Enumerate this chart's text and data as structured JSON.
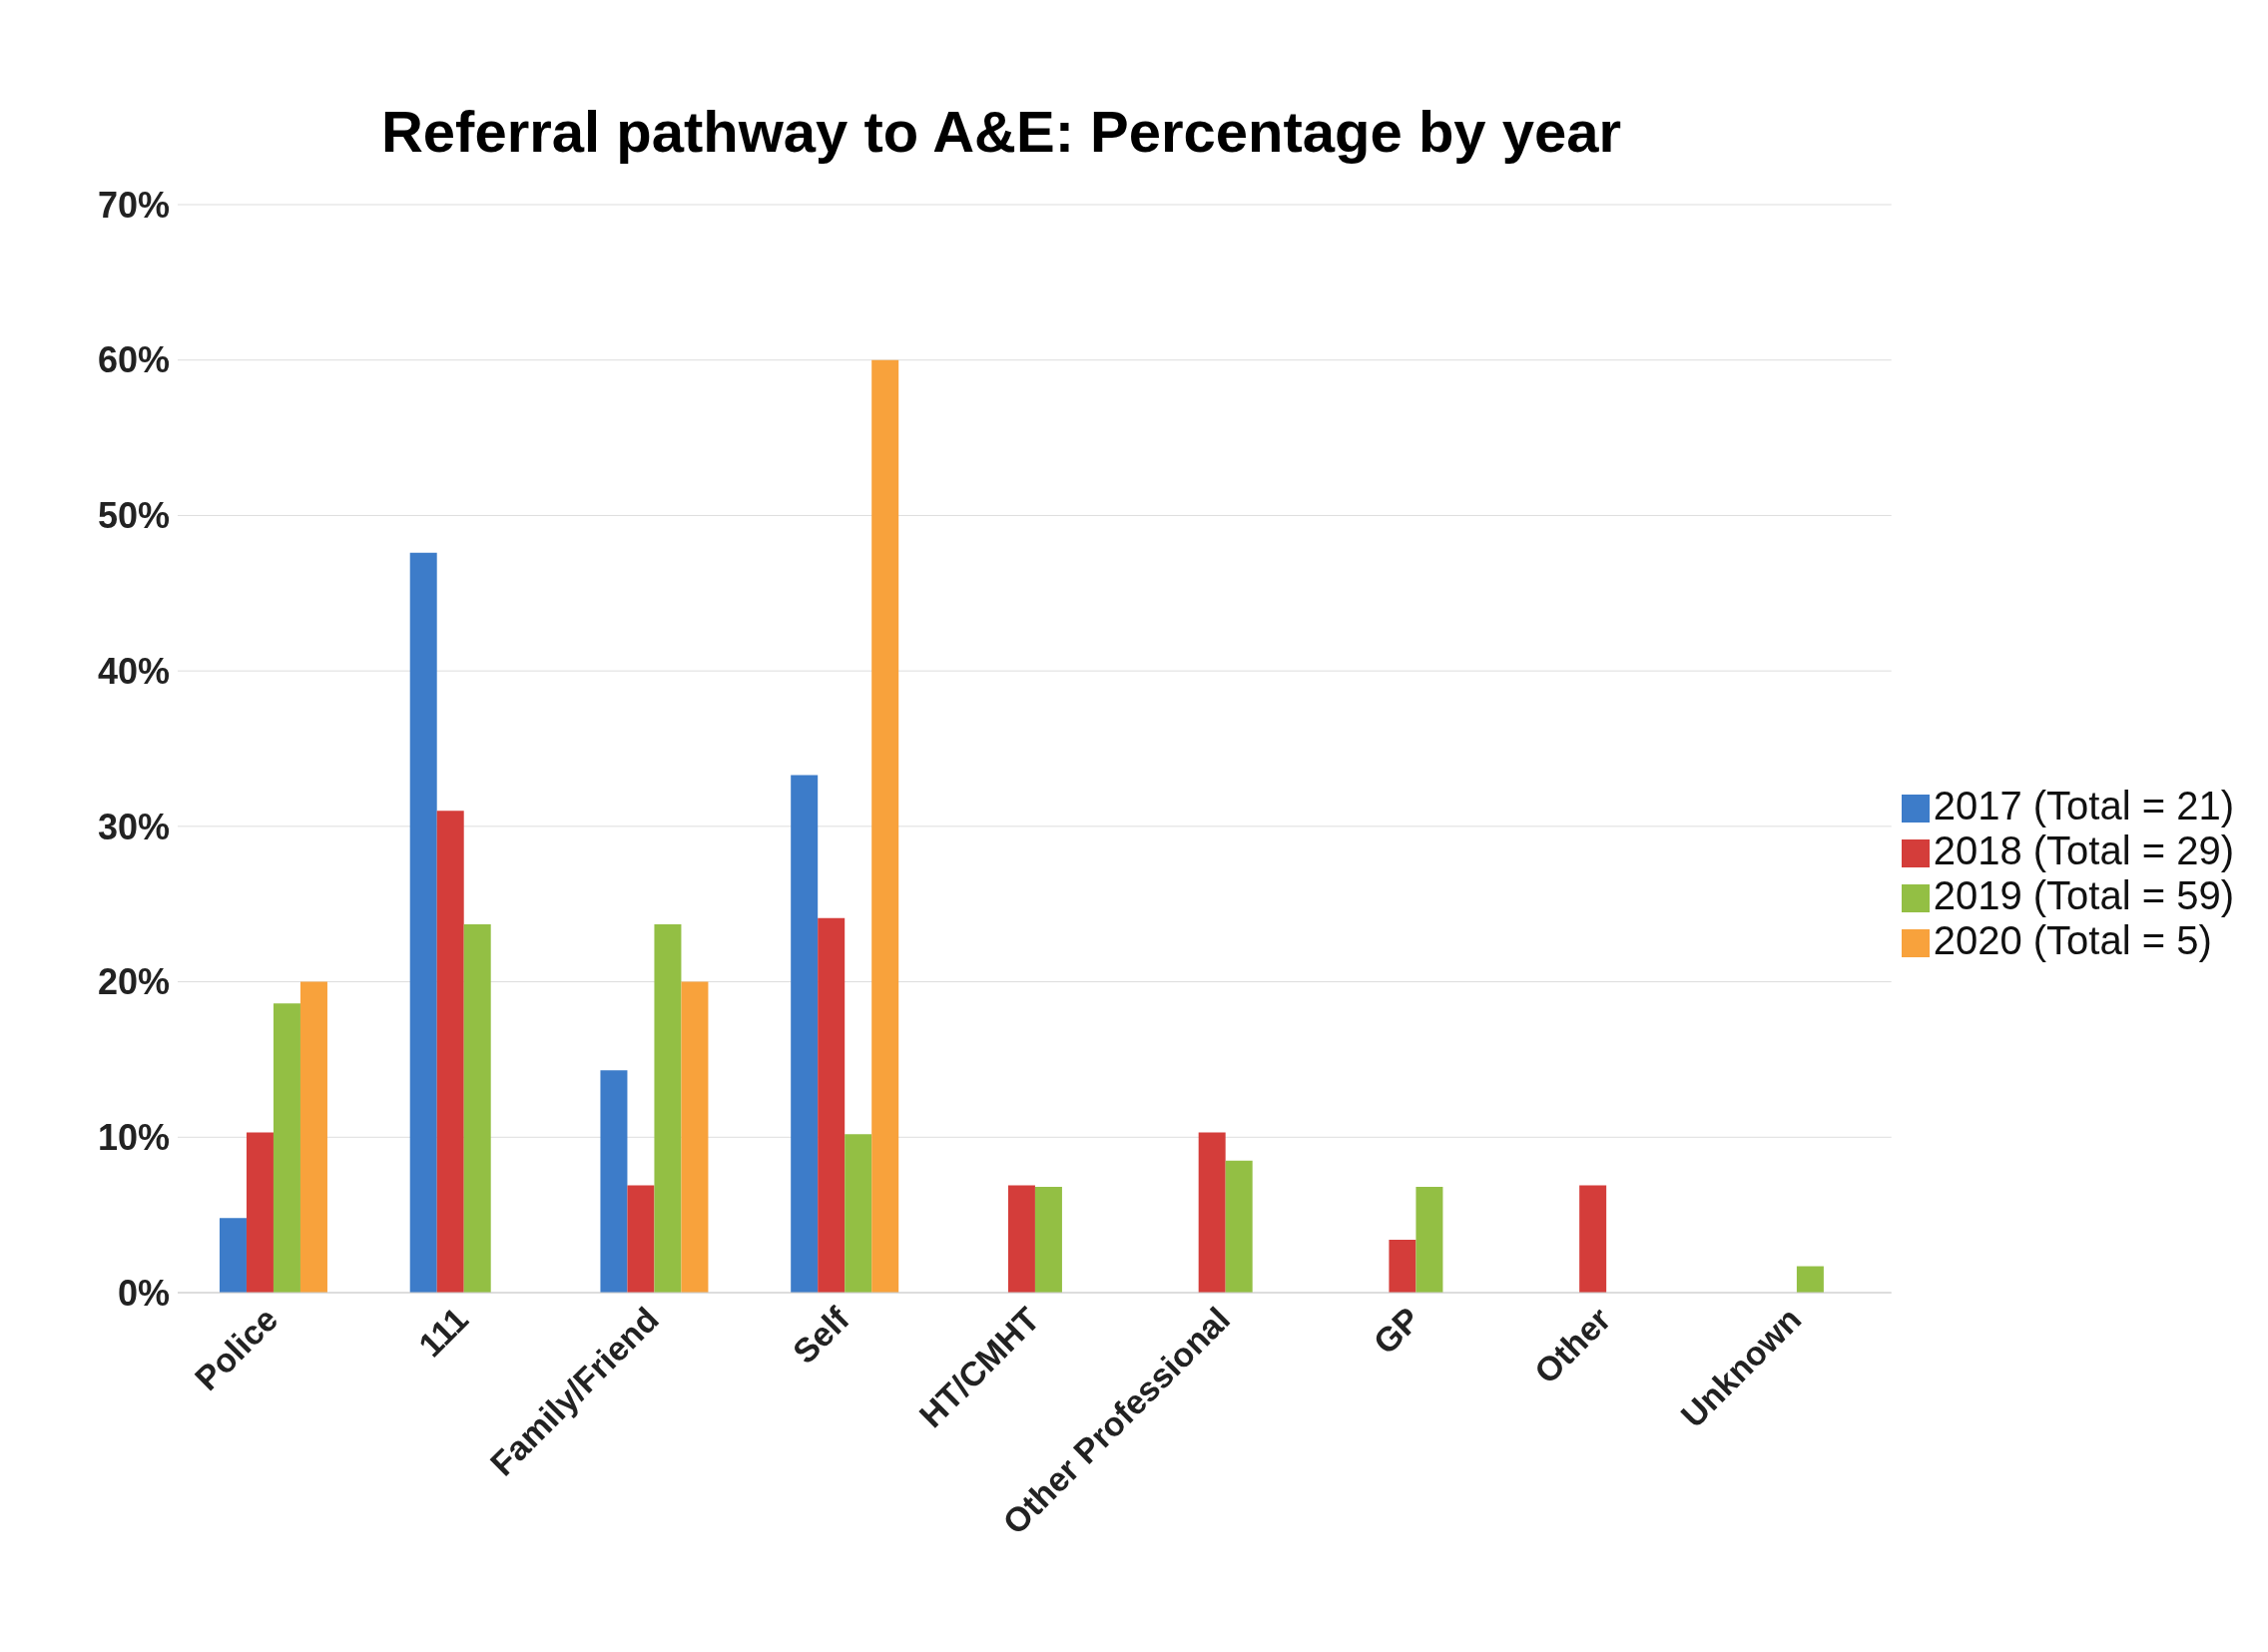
{
  "chart_data": {
    "type": "bar",
    "title": "Referral pathway to A&E: Percentage by year",
    "categories": [
      "Police",
      "111",
      "Family/Friend",
      "Self",
      "HT/CMHT",
      "Other Professional",
      "GP",
      "Other",
      "Unknown"
    ],
    "series": [
      {
        "name": "2017  (Total = 21)",
        "color": "#3d7cc9",
        "values": [
          4.8,
          47.6,
          14.3,
          33.3,
          0,
          0,
          0,
          0,
          0
        ]
      },
      {
        "name": "2018  (Total = 29)",
        "color": "#d43d3a",
        "values": [
          10.3,
          31.0,
          6.9,
          24.1,
          6.9,
          10.3,
          3.4,
          6.9,
          0
        ]
      },
      {
        "name": "2019  (Total = 59)",
        "color": "#93bf44",
        "values": [
          18.6,
          23.7,
          23.7,
          10.2,
          6.8,
          8.5,
          6.8,
          0,
          1.7
        ]
      },
      {
        "name": "2020  (Total = 5)",
        "color": "#f8a23c",
        "values": [
          20,
          0,
          20,
          60,
          0,
          0,
          0,
          0,
          0
        ]
      }
    ],
    "ylim": [
      0,
      70
    ],
    "yticks": [
      {
        "value": 0,
        "label": "0%"
      },
      {
        "value": 10,
        "label": "10%"
      },
      {
        "value": 20,
        "label": "20%"
      },
      {
        "value": 30,
        "label": "30%"
      },
      {
        "value": 40,
        "label": "40%"
      },
      {
        "value": 50,
        "label": "50%"
      },
      {
        "value": 60,
        "label": "60%"
      },
      {
        "value": 70,
        "label": "70%"
      }
    ],
    "grid": "y",
    "legend": "right"
  }
}
